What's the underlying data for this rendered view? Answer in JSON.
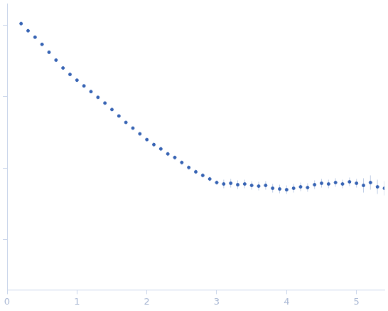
{
  "chart_data": {
    "type": "scatter",
    "x": [
      0.2,
      0.3,
      0.4,
      0.5,
      0.6,
      0.7,
      0.8,
      0.9,
      1.0,
      1.1,
      1.2,
      1.3,
      1.4,
      1.5,
      1.6,
      1.7,
      1.8,
      1.9,
      2.0,
      2.1,
      2.2,
      2.3,
      2.4,
      2.5,
      2.6,
      2.7,
      2.8,
      2.9,
      3.0,
      3.1,
      3.2,
      3.3,
      3.4,
      3.5,
      3.6,
      3.7,
      3.8,
      3.9,
      4.0,
      4.1,
      4.2,
      4.3,
      4.4,
      4.5,
      4.6,
      4.7,
      4.8,
      4.9,
      5.0,
      5.1,
      5.2,
      5.3,
      5.4
    ],
    "values": [
      4.02,
      3.92,
      3.83,
      3.73,
      3.62,
      3.51,
      3.4,
      3.31,
      3.23,
      3.15,
      3.07,
      2.99,
      2.91,
      2.82,
      2.73,
      2.64,
      2.56,
      2.48,
      2.4,
      2.33,
      2.27,
      2.2,
      2.15,
      2.08,
      2.01,
      1.95,
      1.9,
      1.85,
      1.8,
      1.78,
      1.79,
      1.77,
      1.78,
      1.76,
      1.75,
      1.76,
      1.72,
      1.71,
      1.7,
      1.72,
      1.74,
      1.73,
      1.77,
      1.79,
      1.78,
      1.8,
      1.78,
      1.81,
      1.79,
      1.76,
      1.8,
      1.74,
      1.72
    ],
    "errors": [
      0.03,
      0.01,
      0.01,
      0.01,
      0.01,
      0.01,
      0.01,
      0.01,
      0.01,
      0.01,
      0.01,
      0.01,
      0.01,
      0.01,
      0.01,
      0.01,
      0.01,
      0.01,
      0.01,
      0.03,
      0.03,
      0.03,
      0.03,
      0.03,
      0.03,
      0.03,
      0.03,
      0.03,
      0.03,
      0.06,
      0.06,
      0.06,
      0.06,
      0.06,
      0.06,
      0.06,
      0.06,
      0.06,
      0.06,
      0.06,
      0.06,
      0.06,
      0.06,
      0.06,
      0.06,
      0.06,
      0.06,
      0.06,
      0.06,
      0.1,
      0.1,
      0.1,
      0.1
    ],
    "color": "#3562b3",
    "marker": "circle",
    "xlim": [
      0,
      5.4
    ],
    "xticks": [
      0,
      1,
      2,
      3,
      4,
      5
    ],
    "ylim": [
      0.3,
      4.3
    ],
    "yticks": [
      1,
      2,
      3,
      4
    ],
    "tick_labels": "x",
    "grid": false
  }
}
